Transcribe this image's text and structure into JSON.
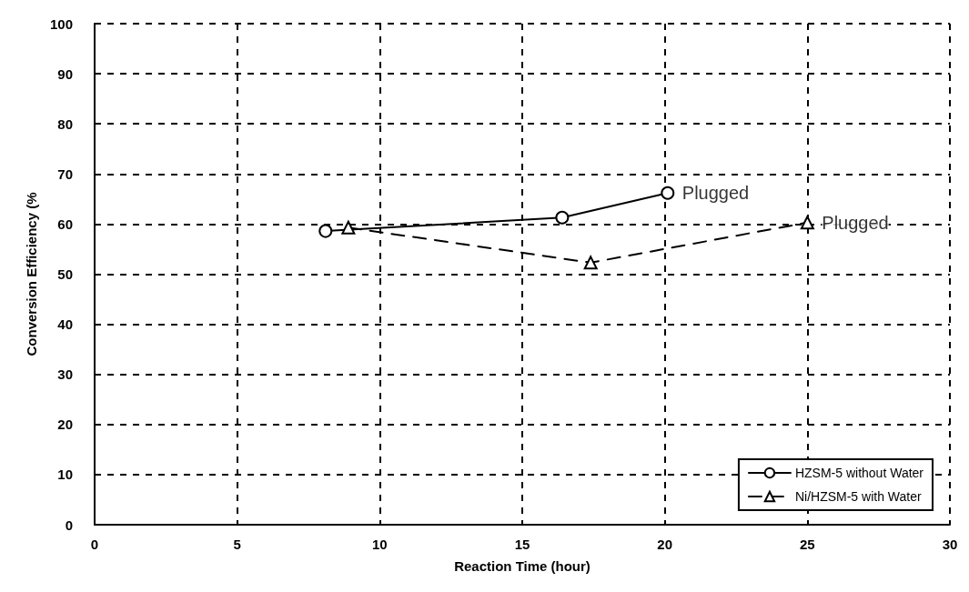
{
  "chart_data": {
    "type": "line",
    "xlabel": "Reaction Time (hour)",
    "ylabel": "Conversion Efficiency (%",
    "xlim": [
      0,
      30
    ],
    "xticks": [
      0,
      5,
      10,
      15,
      20,
      25,
      30
    ],
    "ylim": [
      0,
      100
    ],
    "yticks": [
      0,
      10,
      20,
      30,
      40,
      50,
      60,
      70,
      80,
      90,
      100
    ],
    "grid": true,
    "legend": "bottom right",
    "series": [
      {
        "name": "HZSM-5 without Water",
        "color": "#000000",
        "marker": "circle",
        "line_style": "solid",
        "x": [
          8.1,
          16.4,
          20.1
        ],
        "values": [
          58.6,
          61.3,
          66.2
        ]
      },
      {
        "name": "Ni/HZSM-5 with Water",
        "color": "#000000",
        "marker": "triangle",
        "line_style": "dashed",
        "x": [
          8.9,
          17.4,
          25.0
        ],
        "values": [
          59.3,
          52.3,
          60.3
        ]
      }
    ],
    "annotations": [
      {
        "text": "Plugged",
        "x": 20.1,
        "y": 66.2
      },
      {
        "text": "Plugged",
        "x": 25.0,
        "y": 60.3
      }
    ]
  }
}
